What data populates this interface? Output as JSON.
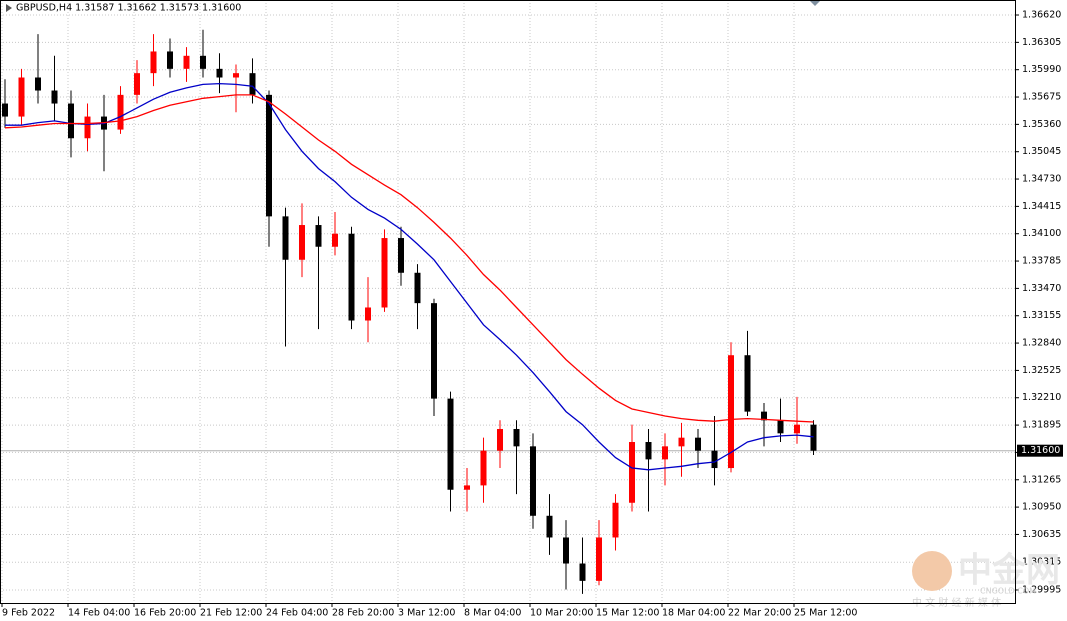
{
  "chart_data": {
    "type": "candlestick",
    "title": "GBPUSD,H4  1.31587 1.31662 1.31573 1.31600",
    "categories": [
      "9 Feb 2022",
      null,
      null,
      null,
      "14 Feb 04:00",
      null,
      null,
      null,
      "16 Feb 20:00",
      null,
      null,
      null,
      "21 Feb 12:00",
      null,
      null,
      null,
      "24 Feb 04:00",
      null,
      null,
      null,
      "28 Feb 20:00",
      null,
      null,
      null,
      "3 Mar 12:00",
      null,
      null,
      null,
      "8 Mar 04:00",
      null,
      null,
      null,
      "10 Mar 20:00",
      null,
      null,
      null,
      "15 Mar 12:00",
      null,
      null,
      null,
      "18 Mar 04:00",
      null,
      null,
      null,
      "22 Mar 20:00",
      null,
      null,
      null,
      "25 Mar 12:00",
      null
    ],
    "open": [
      1.356,
      1.3545,
      1.359,
      1.3575,
      1.356,
      1.352,
      1.3545,
      1.353,
      1.357,
      1.3595,
      1.362,
      1.36,
      1.3615,
      1.36,
      1.359,
      1.3595,
      1.357,
      1.343,
      1.338,
      1.342,
      1.3395,
      1.341,
      1.331,
      1.3325,
      1.3405,
      1.3365,
      1.333,
      1.322,
      1.3115,
      1.312,
      1.316,
      1.3185,
      1.3165,
      1.3085,
      1.306,
      1.303,
      1.301,
      1.306,
      1.31,
      1.317,
      1.315,
      1.3165,
      1.3175,
      1.316,
      1.314,
      1.327,
      1.3205,
      1.3195,
      1.318,
      1.319
    ],
    "high": [
      1.3588,
      1.36,
      1.364,
      1.3615,
      1.3575,
      1.356,
      1.357,
      1.358,
      1.361,
      1.364,
      1.3635,
      1.3625,
      1.3645,
      1.3618,
      1.3605,
      1.3612,
      1.3575,
      1.344,
      1.3445,
      1.343,
      1.3435,
      1.3418,
      1.336,
      1.3415,
      1.3418,
      1.3375,
      1.3335,
      1.3228,
      1.314,
      1.3175,
      1.3195,
      1.3195,
      1.318,
      1.311,
      1.308,
      1.306,
      1.308,
      1.311,
      1.319,
      1.3185,
      1.318,
      1.3192,
      1.3185,
      1.32,
      1.3285,
      1.3298,
      1.3215,
      1.322,
      1.3222,
      1.3195
    ],
    "low": [
      1.3532,
      1.3535,
      1.356,
      1.354,
      1.3498,
      1.3505,
      1.3482,
      1.3525,
      1.356,
      1.358,
      1.359,
      1.3585,
      1.359,
      1.3572,
      1.355,
      1.356,
      1.3395,
      1.328,
      1.336,
      1.33,
      1.3385,
      1.33,
      1.3285,
      1.332,
      1.335,
      1.33,
      1.32,
      1.309,
      1.309,
      1.31,
      1.314,
      1.311,
      1.307,
      1.304,
      1.3,
      1.2995,
      1.3005,
      1.3045,
      1.309,
      1.309,
      1.312,
      1.313,
      1.314,
      1.312,
      1.3135,
      1.32,
      1.3165,
      1.317,
      1.3168,
      1.3155
    ],
    "close": [
      1.3545,
      1.359,
      1.3575,
      1.356,
      1.352,
      1.3545,
      1.353,
      1.357,
      1.3595,
      1.362,
      1.36,
      1.3615,
      1.36,
      1.359,
      1.3595,
      1.357,
      1.343,
      1.338,
      1.342,
      1.3395,
      1.341,
      1.331,
      1.3325,
      1.3405,
      1.3365,
      1.333,
      1.322,
      1.3115,
      1.312,
      1.316,
      1.3185,
      1.3165,
      1.3085,
      1.306,
      1.303,
      1.301,
      1.306,
      1.31,
      1.317,
      1.315,
      1.3165,
      1.3175,
      1.316,
      1.314,
      1.327,
      1.3205,
      1.3195,
      1.318,
      1.319,
      1.316
    ],
    "up_color": "#ff0000",
    "down_color": "#000000",
    "lines": [
      {
        "color": "#0000c8",
        "values": [
          1.3535,
          1.3535,
          1.3538,
          1.354,
          1.3537,
          1.3536,
          1.3537,
          1.3545,
          1.3555,
          1.3565,
          1.3573,
          1.3578,
          1.3582,
          1.3583,
          1.3582,
          1.358,
          1.356,
          1.353,
          1.3505,
          1.3485,
          1.347,
          1.3452,
          1.3438,
          1.3428,
          1.3415,
          1.3398,
          1.338,
          1.3355,
          1.333,
          1.3305,
          1.3288,
          1.327,
          1.325,
          1.3228,
          1.3205,
          1.319,
          1.317,
          1.3152,
          1.314,
          1.3138,
          1.314,
          1.3142,
          1.3145,
          1.3147,
          1.3158,
          1.317,
          1.3175,
          1.3177,
          1.3178,
          1.3176
        ]
      },
      {
        "color": "#ff0000",
        "values": [
          1.3532,
          1.3533,
          1.3535,
          1.3537,
          1.3537,
          1.3537,
          1.3538,
          1.354,
          1.3545,
          1.3552,
          1.3558,
          1.3562,
          1.3566,
          1.3568,
          1.357,
          1.357,
          1.3562,
          1.3548,
          1.3533,
          1.3518,
          1.3505,
          1.349,
          1.3478,
          1.3466,
          1.3455,
          1.344,
          1.3423,
          1.3405,
          1.3385,
          1.3363,
          1.3345,
          1.3325,
          1.3305,
          1.3285,
          1.3265,
          1.3248,
          1.3232,
          1.3218,
          1.3208,
          1.3204,
          1.32,
          1.3197,
          1.3195,
          1.3194,
          1.3196,
          1.3197,
          1.3196,
          1.3195,
          1.3194,
          1.3193
        ]
      }
    ],
    "ylim": [
      1.29845,
      1.36793
    ],
    "yticks": [
      {
        "value": 1.3662,
        "label": "1.36620"
      },
      {
        "value": 1.36305,
        "label": "1.36305"
      },
      {
        "value": 1.3599,
        "label": "1.35990"
      },
      {
        "value": 1.35675,
        "label": "1.35675"
      },
      {
        "value": 1.3536,
        "label": "1.35360"
      },
      {
        "value": 1.35045,
        "label": "1.35045"
      },
      {
        "value": 1.3473,
        "label": "1.34730"
      },
      {
        "value": 1.34415,
        "label": "1.34415"
      },
      {
        "value": 1.341,
        "label": "1.34100"
      },
      {
        "value": 1.33785,
        "label": "1.33785"
      },
      {
        "value": 1.3347,
        "label": "1.33470"
      },
      {
        "value": 1.33155,
        "label": "1.33155"
      },
      {
        "value": 1.3284,
        "label": "1.32840"
      },
      {
        "value": 1.32525,
        "label": "1.32525"
      },
      {
        "value": 1.3221,
        "label": "1.32210"
      },
      {
        "value": 1.31895,
        "label": "1.31895"
      },
      {
        "value": 1.3158,
        "label": "1.31580"
      },
      {
        "value": 1.31265,
        "label": "1.31265"
      },
      {
        "value": 1.3095,
        "label": "1.30950"
      },
      {
        "value": 1.30635,
        "label": "1.30635"
      },
      {
        "value": 1.30315,
        "label": "1.30315"
      },
      {
        "value": 1.29995,
        "label": "1.29995"
      }
    ],
    "price_line": {
      "value": 1.316,
      "label": "1.31600"
    },
    "grid": true,
    "watermark": {
      "logo": "中金网",
      "site": "CNGOLD.COM",
      "slogan": "中 文 财 经 新 媒 体"
    }
  }
}
